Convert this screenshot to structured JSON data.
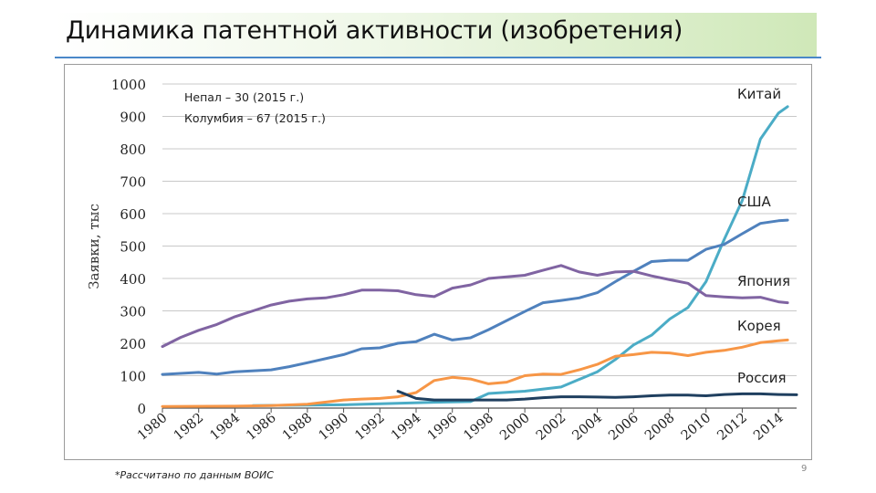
{
  "slide": {
    "title": "Динамика патентной активности (изобретения)",
    "footnote": "*Рассчитано по данным ВОИС",
    "page_number": "9"
  },
  "chart_data": {
    "type": "line",
    "ylabel": "Заявки, тыс",
    "xlabel": "",
    "ylim": [
      0,
      1000
    ],
    "yticks": [
      0,
      100,
      200,
      300,
      400,
      500,
      600,
      700,
      800,
      900,
      1000
    ],
    "xlim": [
      1980,
      2015
    ],
    "xticks": [
      1980,
      1982,
      1984,
      1986,
      1988,
      1990,
      1992,
      1994,
      1996,
      1998,
      2000,
      2002,
      2004,
      2006,
      2008,
      2010,
      2012,
      2014
    ],
    "grid": true,
    "annotation": [
      "Непал – 30 (2015 г.)",
      "Колумбия – 67 (2015 г.)"
    ],
    "series": [
      {
        "name": "Китай",
        "color": "#4bacc6",
        "x": [
          1985,
          1990,
          1995,
          1997,
          1998,
          2000,
          2002,
          2004,
          2005,
          2006,
          2007,
          2008,
          2009,
          2010,
          2011,
          2012,
          2013,
          2014,
          2014.5
        ],
        "y": [
          8,
          10,
          18,
          20,
          45,
          52,
          65,
          112,
          150,
          195,
          225,
          275,
          310,
          390,
          520,
          640,
          830,
          910,
          930
        ]
      },
      {
        "name": "США",
        "color": "#4f81bd",
        "x": [
          1980,
          1982,
          1983,
          1984,
          1986,
          1987,
          1988,
          1990,
          1991,
          1992,
          1993,
          1994,
          1995,
          1996,
          1997,
          1998,
          2000,
          2001,
          2002,
          2003,
          2004,
          2005,
          2006,
          2007,
          2008,
          2009,
          2010,
          2011,
          2012,
          2013,
          2014,
          2014.5
        ],
        "y": [
          104,
          110,
          105,
          112,
          118,
          128,
          140,
          165,
          183,
          186,
          200,
          205,
          228,
          210,
          217,
          242,
          298,
          325,
          332,
          340,
          356,
          390,
          422,
          452,
          456,
          456,
          490,
          505,
          538,
          570,
          578,
          580
        ]
      },
      {
        "name": "Япония",
        "color": "#8064a2",
        "x": [
          1980,
          1981,
          1982,
          1983,
          1984,
          1985,
          1986,
          1987,
          1988,
          1989,
          1990,
          1991,
          1992,
          1993,
          1994,
          1995,
          1996,
          1997,
          1998,
          1999,
          2000,
          2001,
          2002,
          2003,
          2004,
          2005,
          2006,
          2007,
          2008,
          2009,
          2010,
          2011,
          2012,
          2013,
          2014,
          2014.5
        ],
        "y": [
          190,
          218,
          240,
          258,
          282,
          300,
          318,
          330,
          337,
          340,
          350,
          364,
          364,
          362,
          350,
          344,
          370,
          380,
          400,
          405,
          410,
          425,
          440,
          420,
          410,
          420,
          422,
          408,
          396,
          385,
          347,
          343,
          340,
          342,
          328,
          325
        ]
      },
      {
        "name": "Корея",
        "color": "#f79646",
        "x": [
          1980,
          1984,
          1986,
          1988,
          1990,
          1991,
          1992,
          1993,
          1994,
          1995,
          1996,
          1997,
          1998,
          1999,
          2000,
          2001,
          2002,
          2003,
          2004,
          2005,
          2006,
          2007,
          2008,
          2009,
          2010,
          2011,
          2012,
          2013,
          2014,
          2014.5
        ],
        "y": [
          5,
          6,
          8,
          12,
          25,
          28,
          30,
          35,
          48,
          85,
          95,
          90,
          75,
          80,
          100,
          105,
          104,
          118,
          135,
          160,
          165,
          172,
          170,
          162,
          172,
          178,
          188,
          202,
          208,
          210
        ]
      },
      {
        "name": "Россия",
        "color": "#1f3f5f",
        "x": [
          1993,
          1994,
          1995,
          1996,
          1997,
          1998,
          1999,
          2000,
          2001,
          2002,
          2003,
          2004,
          2005,
          2006,
          2007,
          2008,
          2009,
          2010,
          2011,
          2012,
          2013,
          2014,
          2015
        ],
        "y": [
          52,
          30,
          25,
          25,
          25,
          25,
          25,
          28,
          32,
          35,
          35,
          34,
          33,
          35,
          38,
          40,
          40,
          38,
          42,
          44,
          44,
          42,
          41
        ]
      }
    ]
  }
}
